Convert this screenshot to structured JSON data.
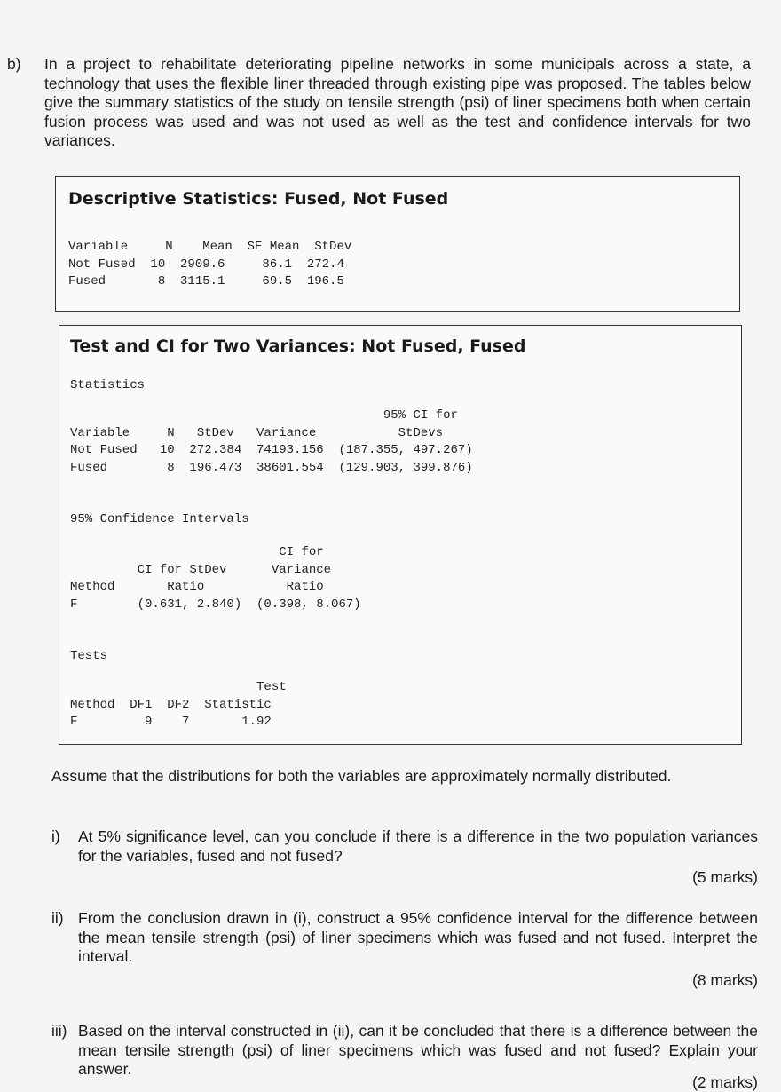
{
  "question": {
    "label": "b)",
    "intro": "In a project to rehabilitate deteriorating pipeline networks in some municipals across a state, a technology that uses the flexible liner threaded through existing pipe was proposed. The tables below give the summary statistics of the study on tensile strength (psi) of liner specimens both when certain fusion process was used and was not used as well as the test and confidence intervals for two variances."
  },
  "descriptive": {
    "title": "Descriptive Statistics: Fused, Not Fused",
    "table": "Variable     N    Mean  SE Mean  StDev\nNot Fused  10  2909.6     86.1  272.4\nFused       8  3115.1     69.5  196.5"
  },
  "variance_test": {
    "title": "Test and CI for Two Variances: Not Fused, Fused",
    "statistics_heading": "Statistics",
    "statistics_table": "                                          95% CI for\nVariable     N   StDev   Variance           StDevs\nNot Fused   10  272.384  74193.156  (187.355, 497.267)\nFused        8  196.473  38601.554  (129.903, 399.876)",
    "ci_heading": "95% Confidence Intervals",
    "ci_table": "                            CI for\n         CI for StDev      Variance\nMethod       Ratio           Ratio\nF        (0.631, 2.840)  (0.398, 8.067)",
    "tests_heading": "Tests",
    "tests_table": "                         Test\nMethod  DF1  DF2  Statistic\nF         9    7       1.92"
  },
  "assumption": "Assume that the distributions for both the variables are approximately normally distributed.",
  "parts": [
    {
      "label": "i)",
      "text": "At 5% significance level, can you conclude if there is a difference in the two population variances for the variables, fused and not fused?",
      "marks": "(5 marks)"
    },
    {
      "label": "ii)",
      "text": "From the conclusion drawn in (i), construct a 95% confidence interval for the difference between the mean tensile strength (psi) of liner specimens which was fused and not fused.  Interpret the interval.",
      "marks": "(8 marks)"
    },
    {
      "label": "iii)",
      "text": "Based on the interval constructed in (ii), can it be concluded that there is a difference between the mean tensile strength (psi) of liner specimens which was fused and not fused? Explain your answer.",
      "marks": "(2 marks)"
    }
  ]
}
